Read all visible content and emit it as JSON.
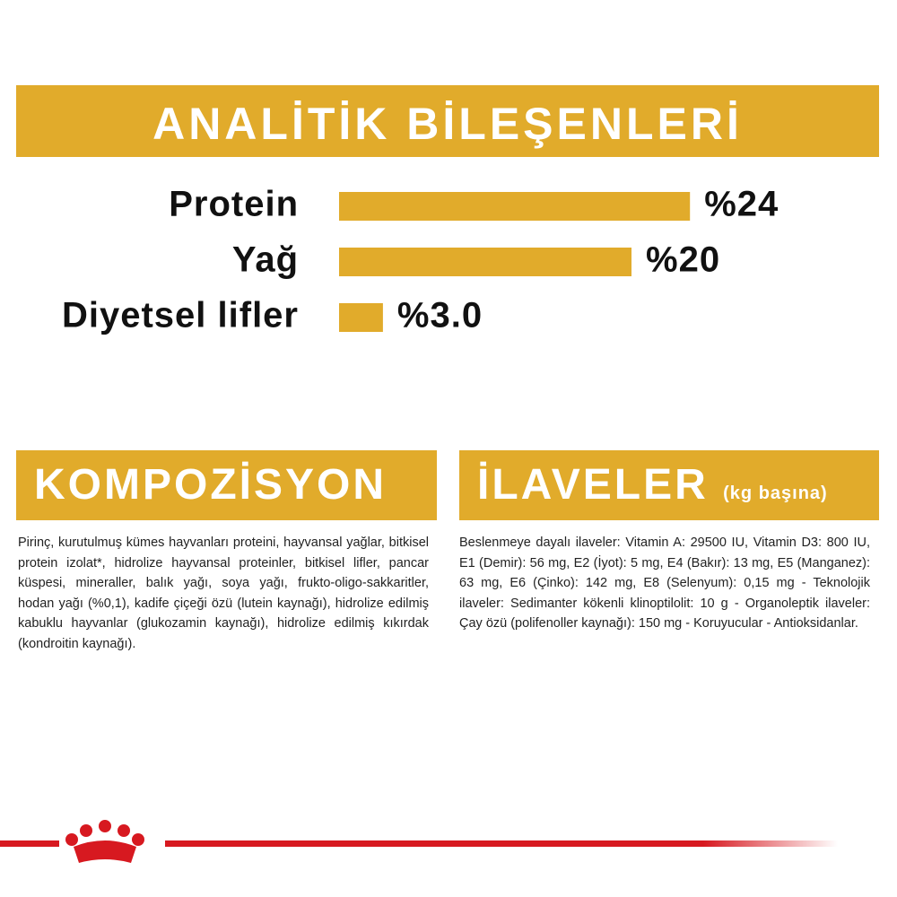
{
  "chart_data": {
    "type": "bar",
    "title": "ANALİTİK BİLEŞENLERİ",
    "categories": [
      "Protein",
      "Yağ",
      "Diyetsel lifler"
    ],
    "values": [
      24,
      20,
      3.0
    ],
    "value_labels": [
      "%24",
      "%20",
      "%3.0"
    ],
    "color": "#e1ab2b"
  },
  "composition": {
    "title": "KOMPOZİSYON",
    "text": "Pirinç, kurutulmuş kümes hayvanları proteini, hayvansal yağlar, bitkisel protein izolat*, hidrolize hayvansal proteinler, bitkisel lifler, pancar küspesi, mineraller, balık yağı, soya yağı, frukto-oligo-sakkaritler, hodan yağı (%0,1), kadife çiçeği özü (lutein kaynağı), hidrolize edilmiş kabuklu hayvanlar (glukozamin kaynağı), hidrolize edilmiş kıkırdak (kondroitin kaynağı)."
  },
  "additives": {
    "title": "İLAVELER",
    "subtitle": "(kg başına)",
    "text": "Beslenmeye dayalı ilaveler: Vitamin A: 29500 IU, Vitamin D3: 800 IU, E1 (Demir): 56 mg, E2 (İyot): 5 mg, E4 (Bakır): 13 mg, E5 (Manganez): 63 mg, E6 (Çinko): 142 mg, E8 (Selenyum): 0,15 mg - Teknolojik ilaveler: Sedimanter kökenli klinoptilolit: 10 g - Organoleptik ilaveler: Çay özü (polifenoller kaynağı): 150 mg - Koruyucular - Antioksidanlar."
  }
}
